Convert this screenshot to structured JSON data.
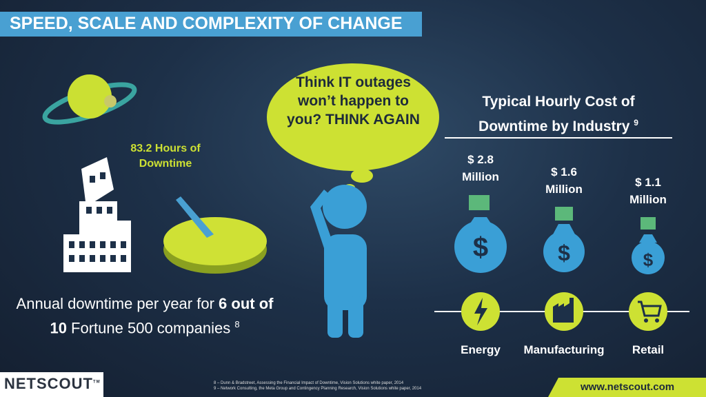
{
  "header": {
    "title": "SPEED, SCALE AND COMPLEXITY OF CHANGE"
  },
  "downtime": {
    "hours": "83.2 Hours of Downtime",
    "caption": {
      "pre": "Annual downtime per year for ",
      "bold": "6 out of 10",
      "post": " Fortune 500 companies ",
      "note": "8"
    }
  },
  "bubble": {
    "text": "Think IT outages won’t happen to you? THINK AGAIN"
  },
  "costs": {
    "title": "Typical Hourly Cost of Downtime by Industry",
    "note": "9",
    "industries": [
      {
        "cost": "$ 2.8",
        "unit": "Million",
        "name": "Energy"
      },
      {
        "cost": "$ 1.6",
        "unit": "Million",
        "name": "Manufacturing"
      },
      {
        "cost": "$ 1.1",
        "unit": "Million",
        "name": "Retail"
      }
    ]
  },
  "footer": {
    "logo": "NETSCOUT",
    "tm": "TM",
    "notes": [
      "8 – Dunn & Bradstreet, Assessing the Financial Impact of Downtime, Vision Solutions  white paper, 2014",
      "9 – Network Consulting, the Meta Group and Contingency Planning Research, Vision Solutions white paper, 2014"
    ],
    "url": "www.netscout.com"
  }
}
